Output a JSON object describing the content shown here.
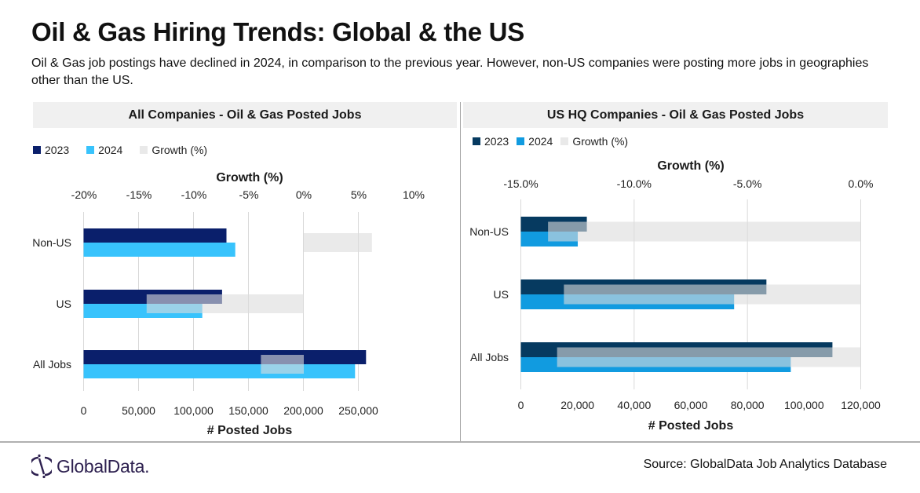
{
  "header": {
    "title": "Oil & Gas Hiring Trends: Global & the US",
    "subtitle": "Oil & Gas job postings have declined in  2024, in comparison to the  previous year. However, non-US companies were posting more jobs in geographies other than the US."
  },
  "footer": {
    "logo_text": "GlobalData.",
    "source": "Source: GlobalData Job Analytics Database"
  },
  "colors": {
    "left_2023": "#0a1f6b",
    "left_2024": "#38c3fc",
    "right_2023": "#063a60",
    "right_2024": "#119be0",
    "growth": "#e9e9e9",
    "grid": "#d9d9d9"
  },
  "chart_data": [
    {
      "type": "bar",
      "orientation": "horizontal",
      "title": "All Companies - Oil & Gas Posted Jobs",
      "categories": [
        "Non-US",
        "US",
        "All Jobs"
      ],
      "series": [
        {
          "name": "2023",
          "axis": "bottom",
          "values": [
            130000,
            126000,
            257000
          ]
        },
        {
          "name": "2024",
          "axis": "bottom",
          "values": [
            138000,
            108000,
            247000
          ]
        },
        {
          "name": "Growth (%)",
          "axis": "top",
          "values": [
            6.2,
            -14.3,
            -3.9
          ]
        }
      ],
      "legend": [
        "2023",
        "2024",
        "Growth (%)"
      ],
      "legend_position": "top-left",
      "xlabel": "# Posted Jobs",
      "xlim": [
        0,
        250000
      ],
      "xticks": [
        "0",
        "50,000",
        "100,000",
        "150,000",
        "200,000",
        "250,000"
      ],
      "x2label": "Growth (%)",
      "x2lim": [
        -20,
        10
      ],
      "x2ticks": [
        "-20%",
        "-15%",
        "-10%",
        "-5%",
        "0%",
        "5%",
        "10%"
      ],
      "grid": true
    },
    {
      "type": "bar",
      "orientation": "horizontal",
      "title": "US HQ Companies - Oil & Gas Posted Jobs",
      "categories": [
        "Non-US",
        "US",
        "All Jobs"
      ],
      "series": [
        {
          "name": "2023",
          "axis": "bottom",
          "values": [
            23300,
            86700,
            110000
          ]
        },
        {
          "name": "2024",
          "axis": "bottom",
          "values": [
            20100,
            75300,
            95300
          ]
        },
        {
          "name": "Growth (%)",
          "axis": "top",
          "values": [
            -13.8,
            -13.1,
            -13.4
          ]
        }
      ],
      "legend": [
        "2023",
        "2024",
        "Growth (%)"
      ],
      "legend_position": "top-left",
      "xlabel": "# Posted Jobs",
      "xlim": [
        0,
        120000
      ],
      "xticks": [
        "0",
        "20,000",
        "40,000",
        "60,000",
        "80,000",
        "100,000",
        "120,000"
      ],
      "x2label": "Growth (%)",
      "x2lim": [
        -15,
        0
      ],
      "x2ticks": [
        "-15.0%",
        "-10.0%",
        "-5.0%",
        "0.0%"
      ],
      "grid": true
    }
  ]
}
